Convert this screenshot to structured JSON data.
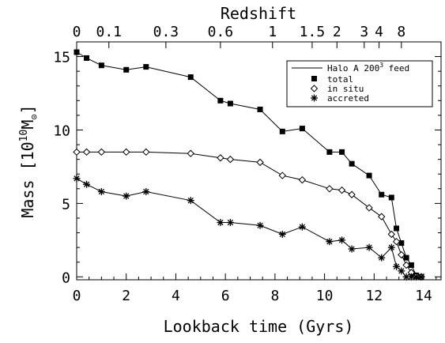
{
  "chart_data": {
    "type": "line",
    "xlabel": "Lookback time (Gyrs)",
    "ylabel_prefix": "Mass [10",
    "ylabel_exp": "10",
    "ylabel_unit": "M",
    "ylabel_suffix": "]",
    "top_axis_label": "Redshift",
    "xlim": [
      0,
      14.7
    ],
    "ylim": [
      -0.2,
      16
    ],
    "x_ticks": [
      0,
      2,
      4,
      6,
      8,
      10,
      12,
      14
    ],
    "y_ticks": [
      0,
      5,
      10,
      15
    ],
    "redshift_ticks": [
      {
        "label": "0",
        "t": 0.0
      },
      {
        "label": "0.1",
        "t": 1.3
      },
      {
        "label": "0.3",
        "t": 3.6
      },
      {
        "label": "0.6",
        "t": 5.8
      },
      {
        "label": "1",
        "t": 7.9
      },
      {
        "label": "1.5",
        "t": 9.5
      },
      {
        "label": "2",
        "t": 10.5
      },
      {
        "label": "3",
        "t": 11.6
      },
      {
        "label": "4",
        "t": 12.2
      },
      {
        "label": "8",
        "t": 13.1
      }
    ],
    "legend": {
      "title": "Halo A 200",
      "title_sup": "3",
      "title_suffix": " feed",
      "entries": [
        "total",
        "in situ",
        "accreted"
      ]
    },
    "series": [
      {
        "name": "total",
        "marker": "square",
        "x": [
          0,
          0.4,
          1.0,
          2.0,
          2.8,
          4.6,
          5.8,
          6.2,
          7.4,
          8.3,
          9.1,
          10.2,
          10.7,
          11.1,
          11.8,
          12.3,
          12.7,
          12.9,
          13.1,
          13.3,
          13.5,
          13.7,
          13.9
        ],
        "y": [
          15.3,
          14.9,
          14.4,
          14.1,
          14.3,
          13.6,
          12.0,
          11.8,
          11.4,
          9.9,
          10.1,
          8.5,
          8.5,
          7.7,
          6.9,
          5.6,
          5.4,
          3.3,
          2.3,
          1.3,
          0.8,
          0.1,
          0.0
        ]
      },
      {
        "name": "in situ",
        "marker": "diamond",
        "x": [
          0,
          0.4,
          1.0,
          2.0,
          2.8,
          4.6,
          5.8,
          6.2,
          7.4,
          8.3,
          9.1,
          10.2,
          10.7,
          11.1,
          11.8,
          12.3,
          12.7,
          12.9,
          13.1,
          13.3,
          13.5,
          13.7,
          13.9
        ],
        "y": [
          8.5,
          8.5,
          8.5,
          8.5,
          8.5,
          8.4,
          8.1,
          8.0,
          7.8,
          6.9,
          6.6,
          6.0,
          5.9,
          5.6,
          4.7,
          4.1,
          2.9,
          2.4,
          1.5,
          0.8,
          0.3,
          0.05,
          0.0
        ]
      },
      {
        "name": "accreted",
        "marker": "asterisk",
        "x": [
          0,
          0.4,
          1.0,
          2.0,
          2.8,
          4.6,
          5.8,
          6.2,
          7.4,
          8.3,
          9.1,
          10.2,
          10.7,
          11.1,
          11.8,
          12.3,
          12.7,
          12.9,
          13.1,
          13.3,
          13.5,
          13.7,
          13.9
        ],
        "y": [
          6.7,
          6.3,
          5.8,
          5.5,
          5.8,
          5.2,
          3.7,
          3.7,
          3.5,
          2.9,
          3.4,
          2.4,
          2.5,
          1.9,
          2.0,
          1.3,
          2.0,
          0.7,
          0.4,
          0.0,
          0.0,
          0.0,
          0.0
        ]
      }
    ]
  }
}
